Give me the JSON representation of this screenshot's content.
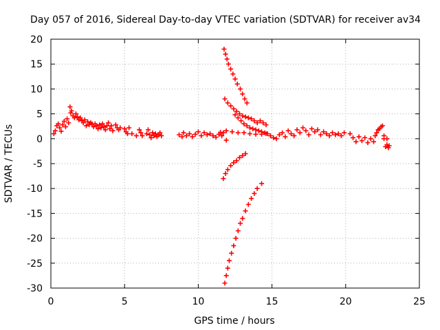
{
  "chart_data": {
    "type": "scatter",
    "title": "Day 057 of 2016, Sidereal Day-to-day VTEC variation (SDTVAR) for receiver av34",
    "xlabel": "GPS time / hours",
    "ylabel": "SDTVAR / TECUs",
    "xlim": [
      0,
      25
    ],
    "ylim": [
      -30,
      20
    ],
    "x_ticks": [
      "0",
      "5",
      "10",
      "15",
      "20",
      "25"
    ],
    "y_ticks": [
      "20",
      "15",
      "10",
      "5",
      "0",
      "-5",
      "-10",
      "-15",
      "-20",
      "-25",
      "-30"
    ],
    "grid": true,
    "marker": "plus",
    "color": "#ff0000",
    "series": [
      {
        "name": "SDTVAR",
        "points": [
          [
            0.2,
            1.0
          ],
          [
            0.3,
            1.6
          ],
          [
            0.4,
            2.6
          ],
          [
            0.5,
            3.0
          ],
          [
            0.6,
            2.2
          ],
          [
            0.7,
            1.5
          ],
          [
            0.8,
            2.8
          ],
          [
            0.9,
            3.5
          ],
          [
            1.0,
            2.4
          ],
          [
            1.1,
            4.0
          ],
          [
            1.2,
            3.2
          ],
          [
            1.3,
            6.4
          ],
          [
            1.35,
            5.2
          ],
          [
            1.4,
            5.6
          ],
          [
            1.5,
            4.6
          ],
          [
            1.6,
            4.2
          ],
          [
            1.7,
            5.0
          ],
          [
            1.8,
            4.4
          ],
          [
            1.9,
            3.8
          ],
          [
            2.0,
            4.2
          ],
          [
            2.1,
            3.6
          ],
          [
            2.2,
            3.2
          ],
          [
            2.3,
            3.8
          ],
          [
            2.4,
            2.6
          ],
          [
            2.5,
            3.4
          ],
          [
            2.6,
            2.8
          ],
          [
            2.7,
            3.2
          ],
          [
            2.8,
            3.0
          ],
          [
            2.9,
            2.4
          ],
          [
            3.0,
            3.0
          ],
          [
            3.1,
            2.6
          ],
          [
            3.2,
            2.0
          ],
          [
            3.3,
            2.8
          ],
          [
            3.4,
            2.2
          ],
          [
            3.5,
            3.0
          ],
          [
            3.6,
            2.4
          ],
          [
            3.7,
            1.8
          ],
          [
            3.8,
            2.6
          ],
          [
            3.9,
            3.2
          ],
          [
            4.0,
            2.0
          ],
          [
            4.1,
            2.6
          ],
          [
            4.2,
            1.6
          ],
          [
            4.4,
            2.8
          ],
          [
            4.5,
            2.2
          ],
          [
            4.6,
            1.8
          ],
          [
            4.7,
            2.2
          ],
          [
            5.0,
            2.0
          ],
          [
            5.1,
            1.4
          ],
          [
            5.2,
            1.0
          ],
          [
            5.3,
            2.2
          ],
          [
            5.5,
            1.0
          ],
          [
            5.8,
            0.6
          ],
          [
            6.0,
            1.8
          ],
          [
            6.1,
            1.2
          ],
          [
            6.2,
            0.6
          ],
          [
            6.5,
            1.0
          ],
          [
            6.6,
            1.8
          ],
          [
            6.7,
            0.8
          ],
          [
            6.8,
            0.2
          ],
          [
            6.9,
            1.2
          ],
          [
            7.0,
            0.6
          ],
          [
            7.1,
            1.0
          ],
          [
            7.2,
            0.4
          ],
          [
            7.3,
            0.8
          ],
          [
            7.4,
            1.2
          ],
          [
            7.5,
            0.6
          ],
          [
            8.7,
            0.8
          ],
          [
            8.9,
            0.4
          ],
          [
            9.0,
            1.2
          ],
          [
            9.2,
            0.6
          ],
          [
            9.4,
            1.0
          ],
          [
            9.6,
            0.4
          ],
          [
            9.8,
            0.9
          ],
          [
            10.0,
            1.4
          ],
          [
            10.2,
            0.6
          ],
          [
            10.4,
            1.2
          ],
          [
            10.6,
            0.8
          ],
          [
            10.8,
            1.0
          ],
          [
            11.0,
            0.6
          ],
          [
            11.2,
            0.3
          ],
          [
            11.4,
            0.9
          ],
          [
            11.5,
            1.3
          ],
          [
            11.6,
            0.6
          ],
          [
            11.7,
            1.2
          ],
          [
            11.9,
            -0.3
          ],
          [
            11.75,
            18.0
          ],
          [
            11.85,
            17.0
          ],
          [
            11.95,
            16.0
          ],
          [
            12.05,
            15.0
          ],
          [
            12.2,
            14.0
          ],
          [
            12.35,
            13.0
          ],
          [
            12.5,
            12.0
          ],
          [
            12.65,
            11.0
          ],
          [
            12.85,
            10.0
          ],
          [
            13.0,
            9.0
          ],
          [
            13.15,
            8.0
          ],
          [
            13.3,
            7.2
          ],
          [
            11.8,
            8.0
          ],
          [
            12.0,
            7.2
          ],
          [
            12.2,
            6.6
          ],
          [
            12.4,
            6.0
          ],
          [
            12.6,
            5.5
          ],
          [
            12.8,
            5.0
          ],
          [
            13.0,
            4.6
          ],
          [
            13.2,
            4.4
          ],
          [
            13.4,
            4.2
          ],
          [
            13.6,
            4.0
          ],
          [
            13.8,
            3.6
          ],
          [
            14.0,
            3.2
          ],
          [
            14.2,
            3.6
          ],
          [
            14.4,
            3.2
          ],
          [
            14.6,
            2.8
          ],
          [
            12.5,
            4.8
          ],
          [
            12.7,
            4.2
          ],
          [
            12.9,
            3.6
          ],
          [
            13.1,
            3.0
          ],
          [
            13.3,
            2.6
          ],
          [
            13.5,
            2.2
          ],
          [
            13.7,
            2.0
          ],
          [
            13.9,
            1.8
          ],
          [
            14.1,
            1.6
          ],
          [
            14.3,
            1.4
          ],
          [
            14.5,
            1.2
          ],
          [
            14.7,
            1.0
          ],
          [
            11.9,
            1.6
          ],
          [
            12.3,
            1.4
          ],
          [
            12.7,
            1.2
          ],
          [
            13.1,
            1.2
          ],
          [
            13.5,
            1.0
          ],
          [
            13.9,
            0.9
          ],
          [
            14.3,
            0.9
          ],
          [
            14.6,
            1.0
          ],
          [
            14.9,
            0.6
          ],
          [
            15.1,
            0.2
          ],
          [
            15.3,
            0.0
          ],
          [
            15.5,
            0.8
          ],
          [
            15.7,
            1.2
          ],
          [
            15.9,
            0.4
          ],
          [
            16.1,
            1.6
          ],
          [
            16.3,
            1.0
          ],
          [
            16.5,
            0.6
          ],
          [
            16.7,
            1.8
          ],
          [
            16.9,
            1.2
          ],
          [
            17.1,
            2.2
          ],
          [
            17.3,
            1.6
          ],
          [
            17.5,
            0.8
          ],
          [
            17.7,
            2.0
          ],
          [
            17.9,
            1.4
          ],
          [
            18.1,
            1.8
          ],
          [
            18.3,
            0.8
          ],
          [
            18.5,
            1.4
          ],
          [
            18.7,
            1.0
          ],
          [
            18.9,
            0.6
          ],
          [
            19.1,
            1.2
          ],
          [
            19.3,
            0.8
          ],
          [
            19.5,
            1.0
          ],
          [
            19.7,
            0.6
          ],
          [
            19.9,
            1.2
          ],
          [
            11.7,
            -8.0
          ],
          [
            11.85,
            -7.0
          ],
          [
            12.0,
            -6.2
          ],
          [
            12.2,
            -5.4
          ],
          [
            12.4,
            -4.8
          ],
          [
            12.6,
            -4.4
          ],
          [
            12.8,
            -3.8
          ],
          [
            13.0,
            -3.4
          ],
          [
            13.2,
            -3.0
          ],
          [
            11.8,
            -29.0
          ],
          [
            11.9,
            -27.5
          ],
          [
            12.0,
            -26.0
          ],
          [
            12.1,
            -24.5
          ],
          [
            12.25,
            -23.0
          ],
          [
            12.4,
            -21.5
          ],
          [
            12.55,
            -20.0
          ],
          [
            12.7,
            -18.5
          ],
          [
            12.85,
            -17.0
          ],
          [
            13.0,
            -16.0
          ],
          [
            13.2,
            -14.5
          ],
          [
            13.4,
            -13.2
          ],
          [
            13.6,
            -12.0
          ],
          [
            13.8,
            -11.0
          ],
          [
            14.0,
            -10.0
          ],
          [
            14.3,
            -9.0
          ],
          [
            20.3,
            1.0
          ],
          [
            20.5,
            0.2
          ],
          [
            20.7,
            -0.6
          ],
          [
            20.9,
            0.4
          ],
          [
            21.1,
            -0.4
          ],
          [
            21.3,
            0.2
          ],
          [
            21.5,
            -0.8
          ],
          [
            21.7,
            0.0
          ],
          [
            21.9,
            -0.6
          ],
          [
            22.0,
            0.6
          ],
          [
            22.1,
            1.2
          ],
          [
            22.2,
            1.8
          ],
          [
            22.3,
            2.0
          ],
          [
            22.4,
            2.4
          ],
          [
            22.5,
            2.6
          ],
          [
            22.6,
            0.0
          ],
          [
            22.7,
            -1.6
          ],
          [
            22.8,
            -1.2
          ],
          [
            22.9,
            -1.8
          ],
          [
            22.95,
            -1.4
          ],
          [
            22.6,
            0.6
          ],
          [
            22.8,
            0.0
          ]
        ]
      }
    ]
  }
}
